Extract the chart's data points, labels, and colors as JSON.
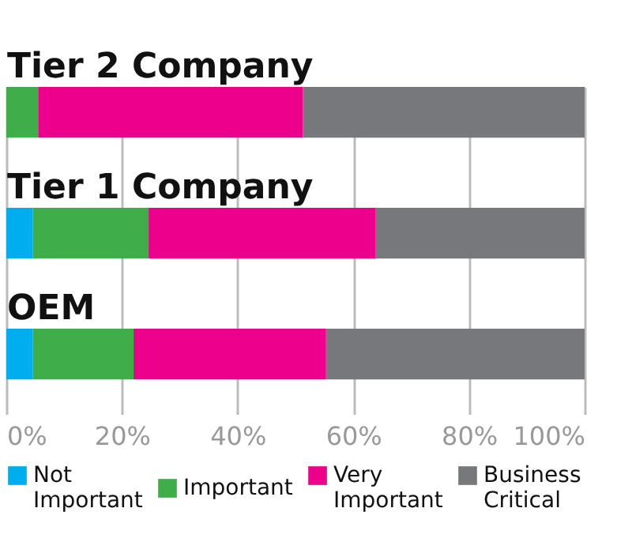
{
  "chart_data": {
    "type": "bar",
    "orientation": "horizontal",
    "stacked": true,
    "categories": [
      "Tier 2 Company",
      "Tier 1 Company",
      "OEM"
    ],
    "series": [
      {
        "name": "Not Important",
        "color": "#00aeef",
        "values": [
          0,
          4.6,
          4.6
        ]
      },
      {
        "name": "Important",
        "color": "#3fae49",
        "values": [
          5.5,
          20,
          17.4
        ]
      },
      {
        "name": "Very Important",
        "color": "#ec008c",
        "values": [
          45.8,
          39.3,
          33.3
        ]
      },
      {
        "name": "Business Critical",
        "color": "#77787b",
        "values": [
          48.7,
          36.1,
          44.7
        ]
      }
    ],
    "xlim": [
      0,
      100
    ],
    "xticks": [
      {
        "value": 0,
        "label": "0%"
      },
      {
        "value": 20,
        "label": "20%"
      },
      {
        "value": 40,
        "label": "40%"
      },
      {
        "value": 60,
        "label": "60%"
      },
      {
        "value": 80,
        "label": "80%"
      },
      {
        "value": 100,
        "label": "100%"
      }
    ],
    "grid": "x",
    "legend": "bottom"
  }
}
